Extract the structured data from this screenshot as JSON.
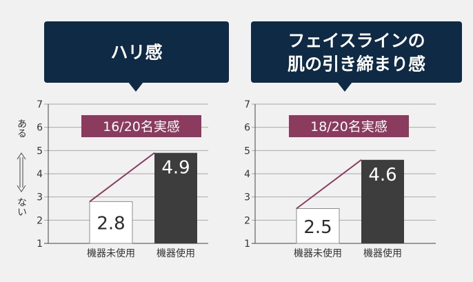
{
  "colors": {
    "background": "#f1f1f1",
    "callout": "#0f2a44",
    "callout_text": "#ffffff",
    "badge": "#8a3b5e",
    "badge_text": "#ffffff",
    "bar_before_fill": "#ffffff",
    "bar_before_stroke": "#8c8c8c",
    "bar_after": "#3d3d3d",
    "trend_line": "#8a3b5e",
    "grid": "#a8a8a8",
    "axis": "#444444",
    "text": "#333333"
  },
  "y_axis_annotation": {
    "top": "ある",
    "bottom": "ない"
  },
  "chart_data": [
    {
      "type": "bar",
      "title_lines": [
        "ハリ感"
      ],
      "badge": "16/20名実感",
      "categories": [
        "機器未使用",
        "機器使用"
      ],
      "values": [
        2.8,
        4.9
      ],
      "value_labels": [
        "2.8",
        "4.9"
      ],
      "ylim": [
        1,
        7
      ],
      "yticks": [
        "1",
        "2",
        "3",
        "4",
        "5",
        "6",
        "7"
      ],
      "grid": true,
      "xlabel": "",
      "ylabel": ""
    },
    {
      "type": "bar",
      "title_lines": [
        "フェイスラインの",
        "肌の引き締まり感"
      ],
      "badge": "18/20名実感",
      "categories": [
        "機器未使用",
        "機器使用"
      ],
      "values": [
        2.5,
        4.6
      ],
      "value_labels": [
        "2.5",
        "4.6"
      ],
      "ylim": [
        1,
        7
      ],
      "yticks": [
        "1",
        "2",
        "3",
        "4",
        "5",
        "6",
        "7"
      ],
      "grid": true,
      "xlabel": "",
      "ylabel": ""
    }
  ]
}
